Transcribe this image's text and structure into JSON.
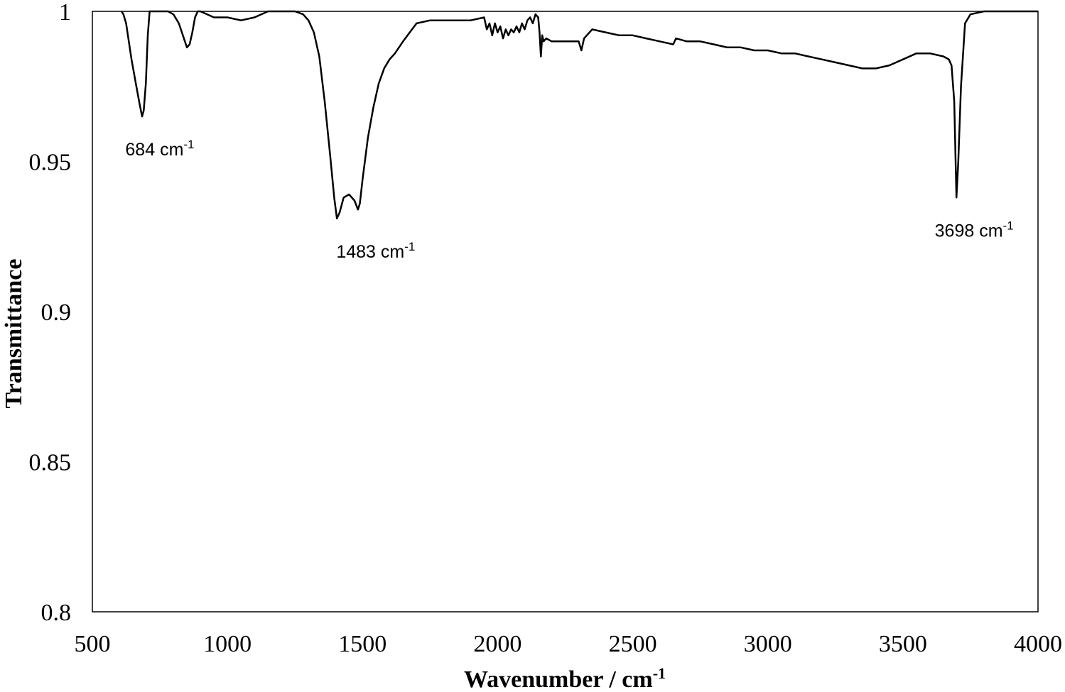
{
  "chart_data": {
    "type": "line",
    "title": "",
    "xlabel": "Wavenumber / cm",
    "xlabel_sup": "-1",
    "ylabel": "Transmittance",
    "xlim": [
      500,
      4000
    ],
    "ylim": [
      0.8,
      1.0
    ],
    "xticks": [
      500,
      1000,
      1500,
      2000,
      2500,
      3000,
      3500,
      4000
    ],
    "yticks": [
      0.8,
      0.85,
      0.9,
      0.95,
      1.0
    ],
    "xtick_labels": [
      "500",
      "1000",
      "1500",
      "2000",
      "2500",
      "3000",
      "3500",
      "4000"
    ],
    "ytick_labels": [
      "0.8",
      "0.85",
      "0.9",
      "0.95",
      "1"
    ],
    "grid": false,
    "legend": "none",
    "line_color": "#000000",
    "annotations": [
      {
        "text": "684 cm",
        "sup": "-1",
        "x": 684,
        "y": 0.965
      },
      {
        "text": "1483 cm",
        "sup": "-1",
        "x": 1483,
        "y": 0.931
      },
      {
        "text": "3698 cm",
        "sup": "-1",
        "x": 3698,
        "y": 0.938
      }
    ],
    "series": [
      {
        "x": [
          608,
          615,
          625,
          635,
          645,
          655,
          665,
          675,
          684,
          690,
          698,
          705,
          712,
          720,
          740,
          760,
          780,
          800,
          820,
          835,
          850,
          860,
          870,
          880,
          890,
          900,
          950,
          1000,
          1050,
          1100,
          1150,
          1200,
          1250,
          1280,
          1300,
          1320,
          1340,
          1360,
          1380,
          1395,
          1405,
          1415,
          1430,
          1450,
          1470,
          1483,
          1490,
          1500,
          1520,
          1540,
          1560,
          1580,
          1600,
          1620,
          1650,
          1700,
          1750,
          1800,
          1850,
          1900,
          1950,
          1960,
          1970,
          1980,
          1990,
          2000,
          2010,
          2020,
          2030,
          2040,
          2050,
          2060,
          2070,
          2080,
          2090,
          2100,
          2110,
          2120,
          2130,
          2140,
          2150,
          2155,
          2160,
          2165,
          2170,
          2180,
          2200,
          2250,
          2300,
          2310,
          2320,
          2350,
          2400,
          2450,
          2500,
          2550,
          2600,
          2650,
          2660,
          2700,
          2750,
          2800,
          2850,
          2900,
          2950,
          3000,
          3050,
          3100,
          3150,
          3200,
          3250,
          3300,
          3350,
          3400,
          3450,
          3500,
          3550,
          3600,
          3650,
          3670,
          3680,
          3690,
          3698,
          3705,
          3715,
          3730,
          3750,
          3800,
          3850,
          3900,
          3950,
          4000
        ],
        "y": [
          1.0,
          0.999,
          0.996,
          0.99,
          0.984,
          0.979,
          0.974,
          0.969,
          0.965,
          0.967,
          0.976,
          0.992,
          1.0,
          1.0,
          1.0,
          1.0,
          1.0,
          0.999,
          0.996,
          0.992,
          0.988,
          0.989,
          0.993,
          0.998,
          1.0,
          1.0,
          0.998,
          0.998,
          0.997,
          0.998,
          1.0,
          1.0,
          1.0,
          0.999,
          0.997,
          0.993,
          0.985,
          0.97,
          0.952,
          0.938,
          0.931,
          0.933,
          0.938,
          0.939,
          0.937,
          0.934,
          0.936,
          0.944,
          0.958,
          0.968,
          0.976,
          0.981,
          0.984,
          0.986,
          0.99,
          0.996,
          0.997,
          0.997,
          0.997,
          0.997,
          0.998,
          0.994,
          0.996,
          0.992,
          0.996,
          0.993,
          0.995,
          0.991,
          0.994,
          0.992,
          0.994,
          0.993,
          0.995,
          0.993,
          0.996,
          0.994,
          0.997,
          0.998,
          0.996,
          0.999,
          0.998,
          0.993,
          0.985,
          0.992,
          0.99,
          0.991,
          0.99,
          0.99,
          0.99,
          0.987,
          0.991,
          0.994,
          0.993,
          0.992,
          0.992,
          0.991,
          0.99,
          0.989,
          0.991,
          0.99,
          0.99,
          0.989,
          0.988,
          0.988,
          0.987,
          0.987,
          0.986,
          0.986,
          0.985,
          0.984,
          0.983,
          0.982,
          0.981,
          0.981,
          0.982,
          0.984,
          0.986,
          0.986,
          0.985,
          0.984,
          0.982,
          0.97,
          0.938,
          0.95,
          0.975,
          0.996,
          0.999,
          1.0,
          1.0,
          1.0,
          1.0,
          1.0
        ]
      }
    ]
  }
}
